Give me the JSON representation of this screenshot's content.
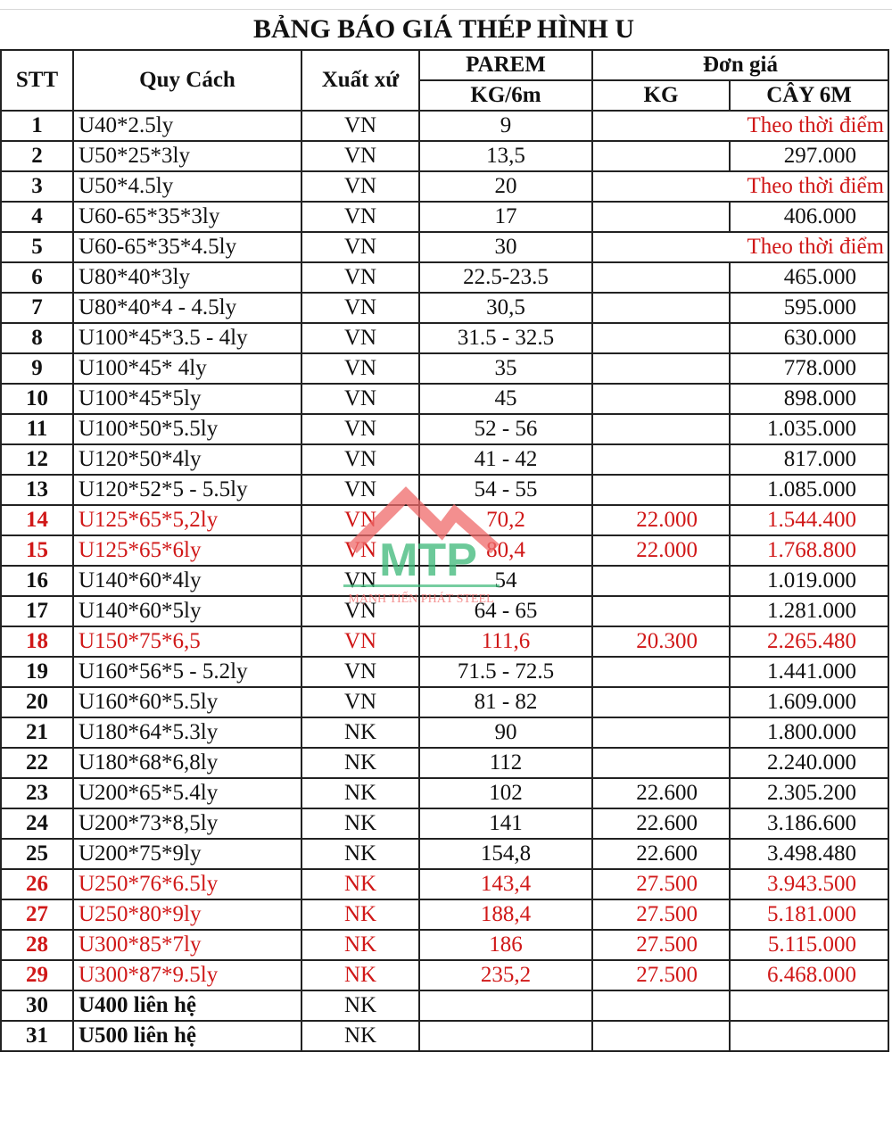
{
  "title": "BẢNG BÁO GIÁ THÉP HÌNH U",
  "headers": {
    "stt": "STT",
    "spec": "Quy Cách",
    "origin": "Xuất xứ",
    "parem": "PAREM",
    "parem_unit": "KG/6m",
    "price": "Đơn giá",
    "price_kg": "KG",
    "price_bar": "CÂY 6M"
  },
  "colors": {
    "highlight": "#d01818",
    "text": "#111111"
  },
  "watermark": {
    "logo_text": "MTP",
    "tagline": "MẠNH TIẾN PHÁT STEEL"
  },
  "rows": [
    {
      "stt": "1",
      "spec": "U40*2.5ly",
      "origin": "VN",
      "weight": "9",
      "kg": "",
      "bar": "",
      "note": "Theo thời điểm"
    },
    {
      "stt": "2",
      "spec": "U50*25*3ly",
      "origin": "VN",
      "weight": "13,5",
      "kg": "",
      "bar": "297.000"
    },
    {
      "stt": "3",
      "spec": "U50*4.5ly",
      "origin": "VN",
      "weight": "20",
      "kg": "",
      "bar": "",
      "note": "Theo thời điểm"
    },
    {
      "stt": "4",
      "spec": "U60-65*35*3ly",
      "origin": "VN",
      "weight": "17",
      "kg": "",
      "bar": "406.000"
    },
    {
      "stt": "5",
      "spec": "U60-65*35*4.5ly",
      "origin": "VN",
      "weight": "30",
      "kg": "",
      "bar": "",
      "note": "Theo thời điểm"
    },
    {
      "stt": "6",
      "spec": "U80*40*3ly",
      "origin": "VN",
      "weight": "22.5-23.5",
      "kg": "",
      "bar": "465.000"
    },
    {
      "stt": "7",
      "spec": "U80*40*4 - 4.5ly",
      "origin": "VN",
      "weight": "30,5",
      "kg": "",
      "bar": "595.000"
    },
    {
      "stt": "8",
      "spec": "U100*45*3.5 - 4ly",
      "origin": "VN",
      "weight": "31.5 - 32.5",
      "kg": "",
      "bar": "630.000"
    },
    {
      "stt": "9",
      "spec": "U100*45* 4ly",
      "origin": "VN",
      "weight": "35",
      "kg": "",
      "bar": "778.000"
    },
    {
      "stt": "10",
      "spec": "U100*45*5ly",
      "origin": "VN",
      "weight": "45",
      "kg": "",
      "bar": "898.000"
    },
    {
      "stt": "11",
      "spec": "U100*50*5.5ly",
      "origin": "VN",
      "weight": "52 - 56",
      "kg": "",
      "bar": "1.035.000"
    },
    {
      "stt": "12",
      "spec": "U120*50*4ly",
      "origin": "VN",
      "weight": "41 - 42",
      "kg": "",
      "bar": "817.000"
    },
    {
      "stt": "13",
      "spec": "U120*52*5 - 5.5ly",
      "origin": "VN",
      "weight": "54 - 55",
      "kg": "",
      "bar": "1.085.000"
    },
    {
      "stt": "14",
      "spec": "U125*65*5,2ly",
      "origin": "VN",
      "weight": "70,2",
      "kg": "22.000",
      "bar": "1.544.400",
      "red": true
    },
    {
      "stt": "15",
      "spec": "U125*65*6ly",
      "origin": "VN",
      "weight": "80,4",
      "kg": "22.000",
      "bar": "1.768.800",
      "red": true
    },
    {
      "stt": "16",
      "spec": "U140*60*4ly",
      "origin": "VN",
      "weight": "54",
      "kg": "",
      "bar": "1.019.000"
    },
    {
      "stt": "17",
      "spec": "U140*60*5ly",
      "origin": "VN",
      "weight": "64 - 65",
      "kg": "",
      "bar": "1.281.000"
    },
    {
      "stt": "18",
      "spec": "U150*75*6,5",
      "origin": "VN",
      "weight": "111,6",
      "kg": "20.300",
      "bar": "2.265.480",
      "red": true
    },
    {
      "stt": "19",
      "spec": "U160*56*5 - 5.2ly",
      "origin": "VN",
      "weight": "71.5 - 72.5",
      "kg": "",
      "bar": "1.441.000"
    },
    {
      "stt": "20",
      "spec": "U160*60*5.5ly",
      "origin": "VN",
      "weight": "81 - 82",
      "kg": "",
      "bar": "1.609.000"
    },
    {
      "stt": "21",
      "spec": "U180*64*5.3ly",
      "origin": "NK",
      "weight": "90",
      "kg": "",
      "bar": "1.800.000"
    },
    {
      "stt": "22",
      "spec": "U180*68*6,8ly",
      "origin": "NK",
      "weight": "112",
      "kg": "",
      "bar": "2.240.000"
    },
    {
      "stt": "23",
      "spec": "U200*65*5.4ly",
      "origin": "NK",
      "weight": "102",
      "kg": "22.600",
      "bar": "2.305.200"
    },
    {
      "stt": "24",
      "spec": "U200*73*8,5ly",
      "origin": "NK",
      "weight": "141",
      "kg": "22.600",
      "bar": "3.186.600"
    },
    {
      "stt": "25",
      "spec": "U200*75*9ly",
      "origin": "NK",
      "weight": "154,8",
      "kg": "22.600",
      "bar": "3.498.480"
    },
    {
      "stt": "26",
      "spec": "U250*76*6.5ly",
      "origin": "NK",
      "weight": "143,4",
      "kg": "27.500",
      "bar": "3.943.500",
      "red": true
    },
    {
      "stt": "27",
      "spec": "U250*80*9ly",
      "origin": "NK",
      "weight": "188,4",
      "kg": "27.500",
      "bar": "5.181.000",
      "red": true
    },
    {
      "stt": "28",
      "spec": "U300*85*7ly",
      "origin": "NK",
      "weight": "186",
      "kg": "27.500",
      "bar": "5.115.000",
      "red": true
    },
    {
      "stt": "29",
      "spec": "U300*87*9.5ly",
      "origin": "NK",
      "weight": "235,2",
      "kg": "27.500",
      "bar": "6.468.000",
      "red": true
    },
    {
      "stt": "30",
      "spec": "U400 liên hệ",
      "origin": "NK",
      "weight": "",
      "kg": "",
      "bar": "",
      "bold": true
    },
    {
      "stt": "31",
      "spec": "U500 liên hệ",
      "origin": "NK",
      "weight": "",
      "kg": "",
      "bar": "",
      "bold": true
    }
  ]
}
